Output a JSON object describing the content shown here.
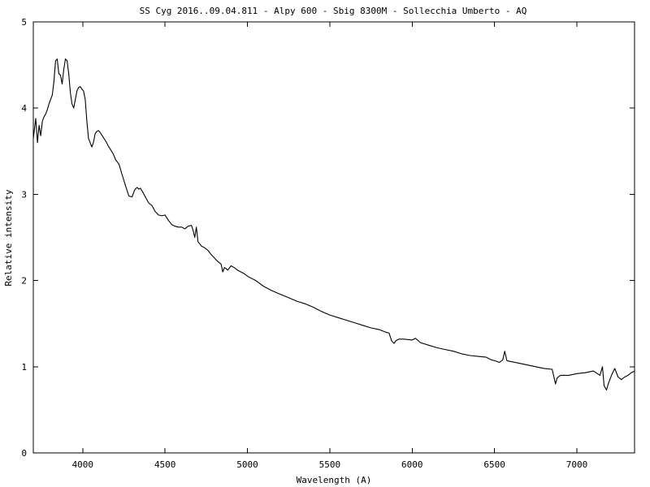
{
  "chart_data": {
    "type": "line",
    "title": "SS Cyg 2016..09.04.811 - Alpy 600 - Sbig 8300M  - Sollecchia Umberto - AQ",
    "xlabel": "Wavelength (A)",
    "ylabel": "Relative intensity",
    "xlim": [
      3700,
      7350
    ],
    "ylim": [
      0,
      5
    ],
    "xticks": [
      4000,
      4500,
      5000,
      5500,
      6000,
      6500,
      7000
    ],
    "yticks": [
      0,
      1,
      2,
      3,
      4,
      5
    ],
    "grid": false,
    "legend": "none",
    "colors": {
      "line": "#000000",
      "axes": "#000000",
      "background": "#ffffff"
    },
    "series": [
      {
        "x": [
          3700,
          3715,
          3725,
          3735,
          3745,
          3755,
          3765,
          3775,
          3785,
          3795,
          3805,
          3815,
          3825,
          3835,
          3845,
          3855,
          3865,
          3875,
          3885,
          3895,
          3905,
          3915,
          3925,
          3935,
          3945,
          3955,
          3965,
          3975,
          3985,
          3995,
          4005,
          4015,
          4025,
          4035,
          4045,
          4055,
          4065,
          4075,
          4085,
          4095,
          4105,
          4115,
          4125,
          4135,
          4145,
          4155,
          4165,
          4175,
          4185,
          4200,
          4220,
          4240,
          4260,
          4280,
          4300,
          4315,
          4330,
          4340,
          4350,
          4360,
          4380,
          4400,
          4420,
          4440,
          4460,
          4480,
          4500,
          4520,
          4540,
          4560,
          4580,
          4600,
          4620,
          4640,
          4660,
          4670,
          4680,
          4690,
          4700,
          4720,
          4740,
          4760,
          4780,
          4800,
          4820,
          4840,
          4850,
          4860,
          4870,
          4880,
          4900,
          4920,
          4940,
          4960,
          4980,
          5000,
          5050,
          5100,
          5150,
          5200,
          5250,
          5300,
          5350,
          5400,
          5450,
          5500,
          5550,
          5600,
          5650,
          5700,
          5750,
          5800,
          5840,
          5860,
          5875,
          5890,
          5900,
          5920,
          5950,
          6000,
          6020,
          6050,
          6100,
          6150,
          6200,
          6250,
          6300,
          6350,
          6400,
          6450,
          6480,
          6500,
          6530,
          6550,
          6562,
          6575,
          6600,
          6650,
          6700,
          6750,
          6800,
          6850,
          6870,
          6880,
          6900,
          6950,
          7000,
          7050,
          7100,
          7140,
          7155,
          7165,
          7180,
          7190,
          7210,
          7230,
          7250,
          7270,
          7290,
          7310,
          7330,
          7350
        ],
        "y": [
          3.65,
          3.88,
          3.6,
          3.8,
          3.68,
          3.85,
          3.9,
          3.93,
          3.98,
          4.05,
          4.1,
          4.15,
          4.3,
          4.55,
          4.57,
          4.4,
          4.38,
          4.28,
          4.45,
          4.57,
          4.55,
          4.4,
          4.18,
          4.05,
          4.0,
          4.1,
          4.2,
          4.24,
          4.25,
          4.22,
          4.2,
          4.1,
          3.85,
          3.65,
          3.6,
          3.55,
          3.6,
          3.7,
          3.73,
          3.74,
          3.72,
          3.69,
          3.66,
          3.63,
          3.6,
          3.56,
          3.53,
          3.5,
          3.47,
          3.4,
          3.35,
          3.22,
          3.1,
          2.98,
          2.97,
          3.05,
          3.08,
          3.06,
          3.07,
          3.04,
          2.97,
          2.9,
          2.87,
          2.8,
          2.76,
          2.75,
          2.76,
          2.7,
          2.65,
          2.63,
          2.62,
          2.62,
          2.6,
          2.63,
          2.64,
          2.58,
          2.5,
          2.62,
          2.45,
          2.4,
          2.38,
          2.35,
          2.3,
          2.26,
          2.22,
          2.19,
          2.1,
          2.15,
          2.14,
          2.12,
          2.17,
          2.15,
          2.12,
          2.1,
          2.08,
          2.05,
          2.0,
          1.93,
          1.88,
          1.84,
          1.8,
          1.76,
          1.73,
          1.69,
          1.64,
          1.6,
          1.57,
          1.54,
          1.51,
          1.48,
          1.45,
          1.43,
          1.4,
          1.39,
          1.3,
          1.27,
          1.3,
          1.32,
          1.32,
          1.31,
          1.33,
          1.28,
          1.25,
          1.22,
          1.2,
          1.18,
          1.15,
          1.13,
          1.12,
          1.11,
          1.08,
          1.07,
          1.05,
          1.08,
          1.18,
          1.07,
          1.06,
          1.04,
          1.02,
          1.0,
          0.98,
          0.97,
          0.8,
          0.87,
          0.9,
          0.9,
          0.92,
          0.93,
          0.95,
          0.9,
          1.0,
          0.78,
          0.73,
          0.8,
          0.9,
          0.98,
          0.88,
          0.85,
          0.88,
          0.9,
          0.93,
          0.95
        ]
      }
    ]
  }
}
